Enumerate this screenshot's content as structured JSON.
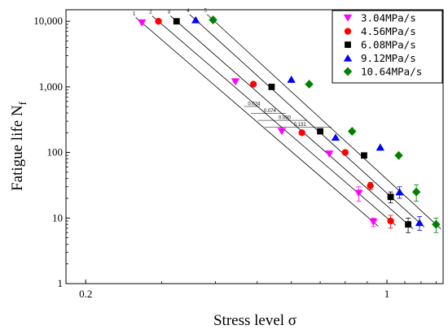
{
  "chart_data": {
    "type": "scatter",
    "xlabel": "Stress level σ",
    "ylabel_main": "Fatigue life N",
    "ylabel_sub": "f",
    "x_scale": "log",
    "y_scale": "log",
    "xlim": [
      0.18,
      1.35
    ],
    "ylim": [
      1,
      15000
    ],
    "x_ticks": [
      {
        "value": 0.2,
        "label": "0.2"
      },
      {
        "value": 1,
        "label": "1"
      }
    ],
    "y_ticks": [
      {
        "value": 1,
        "label": "1"
      },
      {
        "value": 10,
        "label": "10"
      },
      {
        "value": 100,
        "label": "100"
      },
      {
        "value": 1000,
        "label": "1,000"
      },
      {
        "value": 10000,
        "label": "10,000"
      }
    ],
    "grid": false,
    "legend_position": "top-right",
    "series": [
      {
        "name": "3.04MPa/s",
        "color": "#ff00ff",
        "marker": "triangle-down",
        "points": [
          [
            0.27,
            9500
          ],
          [
            0.445,
            1200
          ],
          [
            0.57,
            210
          ],
          [
            0.735,
            95
          ],
          [
            0.86,
            24
          ],
          [
            0.93,
            8.7
          ]
        ],
        "errors": [
          0,
          0,
          0,
          0,
          6,
          1.3
        ]
      },
      {
        "name": "4.56MPa/s",
        "color": "#ff0000",
        "marker": "circle",
        "points": [
          [
            0.295,
            10000
          ],
          [
            0.49,
            1100
          ],
          [
            0.635,
            200
          ],
          [
            0.8,
            100
          ],
          [
            0.915,
            31
          ],
          [
            1.02,
            9
          ]
        ],
        "errors": [
          0,
          0,
          0,
          0,
          4,
          2
        ]
      },
      {
        "name": "6.08MPa/s",
        "color": "#000000",
        "marker": "square",
        "points": [
          [
            0.325,
            10000
          ],
          [
            0.54,
            1000
          ],
          [
            0.7,
            210
          ],
          [
            0.885,
            90
          ],
          [
            1.02,
            21
          ],
          [
            1.12,
            8
          ]
        ],
        "errors": [
          0,
          0,
          0,
          0,
          4,
          2
        ]
      },
      {
        "name": "9.12MPa/s",
        "color": "#0000ff",
        "marker": "triangle-up",
        "points": [
          [
            0.36,
            10500
          ],
          [
            0.6,
            1300
          ],
          [
            0.76,
            170
          ],
          [
            0.965,
            120
          ],
          [
            1.07,
            25
          ],
          [
            1.19,
            8.5
          ]
        ],
        "errors": [
          0,
          0,
          0,
          0,
          5,
          2
        ]
      },
      {
        "name": "10.64MPa/s",
        "color": "#008000",
        "marker": "diamond",
        "points": [
          [
            0.395,
            10500
          ],
          [
            0.66,
            1100
          ],
          [
            0.83,
            210
          ],
          [
            1.065,
            90
          ],
          [
            1.17,
            25
          ],
          [
            1.3,
            8
          ]
        ],
        "errors": [
          0,
          0,
          0,
          0,
          7,
          2
        ]
      }
    ],
    "fit_lines": [
      {
        "label": "1",
        "from": [
          0.27,
          9500
        ],
        "to": [
          0.93,
          8.7
        ]
      },
      {
        "label": "2",
        "from": [
          0.295,
          10000
        ],
        "to": [
          1.02,
          9
        ]
      },
      {
        "label": "3",
        "from": [
          0.325,
          10000
        ],
        "to": [
          1.12,
          8
        ]
      },
      {
        "label": "4",
        "from": [
          0.36,
          10500
        ],
        "to": [
          1.19,
          8.5
        ]
      },
      {
        "label": "5",
        "from": [
          0.395,
          10500
        ],
        "to": [
          1.3,
          8
        ]
      }
    ],
    "spacing_annotations": [
      "0.024",
      "0.074",
      "0.090",
      "0.131"
    ]
  }
}
